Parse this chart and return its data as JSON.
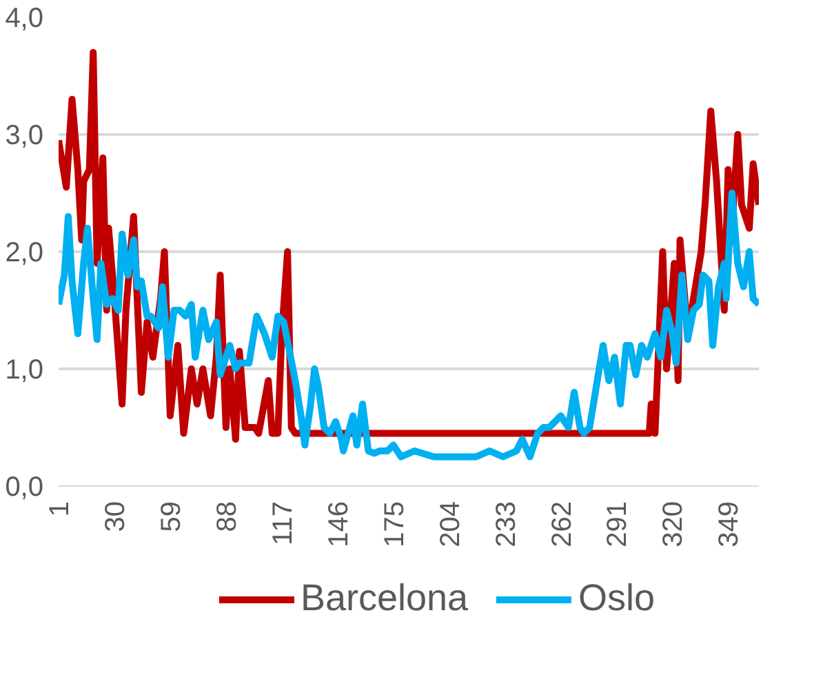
{
  "chart_data": {
    "type": "line",
    "xlim": [
      1,
      365
    ],
    "xticks": [
      1,
      30,
      59,
      88,
      117,
      146,
      175,
      204,
      233,
      262,
      291,
      320,
      349
    ],
    "ylim": [
      0,
      4
    ],
    "yticks": [
      {
        "value": 0,
        "label": "0,0"
      },
      {
        "value": 1,
        "label": "1,0"
      },
      {
        "value": 2,
        "label": "2,0"
      },
      {
        "value": 3,
        "label": "3,0"
      },
      {
        "value": 4,
        "label": "4,0"
      }
    ],
    "grid": "y",
    "legend": "bottom",
    "line_style": "solid",
    "marker": "none",
    "series": [
      {
        "name": "Barcelona",
        "color": "#c00000",
        "x": [
          1,
          5,
          8,
          11,
          13,
          14,
          17,
          19,
          21,
          24,
          26,
          27,
          30,
          34,
          36,
          40,
          44,
          47,
          50,
          54,
          56,
          59,
          63,
          66,
          70,
          73,
          76,
          80,
          83,
          85,
          88,
          90,
          93,
          95,
          98,
          103,
          105,
          110,
          112,
          115,
          117,
          120,
          122,
          124,
          308,
          309,
          311,
          315,
          317,
          321,
          323,
          324,
          328,
          335,
          337,
          340,
          343,
          347,
          349,
          351,
          354,
          356,
          360,
          362,
          365
        ],
        "values": [
          2.95,
          2.55,
          3.3,
          2.7,
          2.1,
          2.6,
          2.7,
          3.7,
          1.9,
          2.8,
          1.5,
          2.2,
          1.6,
          0.7,
          1.5,
          2.3,
          0.8,
          1.4,
          1.1,
          1.6,
          2.0,
          0.6,
          1.2,
          0.45,
          1.0,
          0.7,
          1.0,
          0.6,
          1.1,
          1.8,
          0.5,
          1.0,
          0.4,
          1.15,
          0.5,
          0.5,
          0.45,
          0.9,
          0.45,
          0.45,
          1.3,
          2.0,
          0.5,
          0.45,
          0.45,
          0.7,
          0.45,
          2.0,
          1.0,
          1.9,
          0.9,
          2.1,
          1.3,
          2.0,
          2.4,
          3.2,
          2.6,
          1.5,
          2.7,
          2.2,
          3.0,
          2.4,
          2.2,
          2.75,
          2.4
        ]
      },
      {
        "name": "Oslo",
        "color": "#00b0f0",
        "x": [
          1,
          4,
          6,
          8,
          11,
          14,
          16,
          19,
          21,
          23,
          26,
          29,
          32,
          34,
          37,
          40,
          42,
          44,
          47,
          49,
          53,
          55,
          58,
          61,
          64,
          67,
          70,
          72,
          76,
          79,
          83,
          85,
          90,
          93,
          95,
          100,
          104,
          108,
          110,
          112,
          115,
          118,
          121,
          124,
          127,
          129,
          132,
          134,
          136,
          139,
          142,
          145,
          148,
          149,
          154,
          156,
          159,
          162,
          165,
          168,
          172,
          175,
          179,
          186,
          196,
          218,
          225,
          232,
          239,
          242,
          246,
          250,
          253,
          256,
          259,
          262,
          266,
          269,
          272,
          274,
          277,
          281,
          284,
          287,
          290,
          293,
          296,
          298,
          301,
          304,
          307,
          311,
          314,
          317,
          320,
          322,
          325,
          328,
          331,
          334,
          336,
          339,
          341,
          344,
          347,
          348,
          351,
          354,
          357,
          360,
          362,
          365
        ],
        "values": [
          1.55,
          1.8,
          2.3,
          1.75,
          1.3,
          1.9,
          2.2,
          1.6,
          1.25,
          1.9,
          1.55,
          1.6,
          1.5,
          2.15,
          1.8,
          2.1,
          1.7,
          1.75,
          1.45,
          1.45,
          1.35,
          1.7,
          1.1,
          1.5,
          1.5,
          1.45,
          1.55,
          1.1,
          1.5,
          1.25,
          1.4,
          0.95,
          1.2,
          1.0,
          1.05,
          1.05,
          1.45,
          1.3,
          1.2,
          1.1,
          1.45,
          1.4,
          1.15,
          0.9,
          0.6,
          0.35,
          0.7,
          1.0,
          0.85,
          0.5,
          0.45,
          0.55,
          0.4,
          0.3,
          0.6,
          0.35,
          0.7,
          0.3,
          0.28,
          0.3,
          0.3,
          0.35,
          0.25,
          0.3,
          0.25,
          0.25,
          0.3,
          0.25,
          0.3,
          0.4,
          0.25,
          0.45,
          0.5,
          0.5,
          0.55,
          0.6,
          0.5,
          0.8,
          0.5,
          0.45,
          0.5,
          0.9,
          1.2,
          0.9,
          1.1,
          0.7,
          1.2,
          1.2,
          0.95,
          1.2,
          1.1,
          1.3,
          1.1,
          1.5,
          1.3,
          1.05,
          1.8,
          1.25,
          1.5,
          1.55,
          1.8,
          1.75,
          1.2,
          1.7,
          1.9,
          1.6,
          2.5,
          1.9,
          1.7,
          2.0,
          1.6,
          1.55
        ]
      }
    ]
  }
}
